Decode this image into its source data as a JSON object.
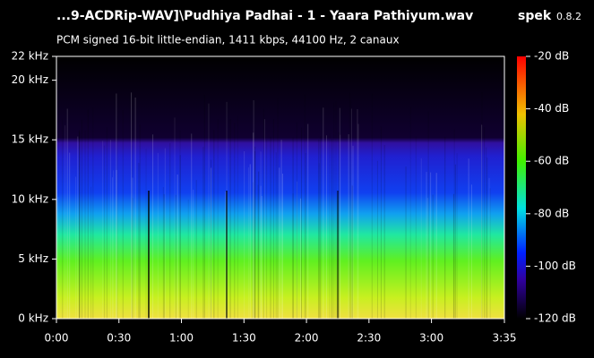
{
  "chart_data": {
    "type": "spectrogram",
    "title": "...9-ACDRip-WAV]\\Pudhiya Padhai - 1 - Yaara Pathiyum.wav",
    "app": "spek",
    "version": "0.8.2",
    "subtitle": "PCM signed 16-bit little-endian, 1411 kbps, 44100 Hz, 2 canaux",
    "xlim": [
      0,
      215
    ],
    "xticks": [
      {
        "value": 0,
        "label": "0:00"
      },
      {
        "value": 30,
        "label": "0:30"
      },
      {
        "value": 60,
        "label": "1:00"
      },
      {
        "value": 90,
        "label": "1:30"
      },
      {
        "value": 120,
        "label": "2:00"
      },
      {
        "value": 150,
        "label": "2:30"
      },
      {
        "value": 180,
        "label": "3:00"
      },
      {
        "value": 215,
        "label": "3:35"
      }
    ],
    "ylim": [
      0,
      22
    ],
    "yticks": [
      {
        "value": 0,
        "label": "0 kHz"
      },
      {
        "value": 5,
        "label": "5 kHz"
      },
      {
        "value": 10,
        "label": "10 kHz"
      },
      {
        "value": 15,
        "label": "15 kHz"
      },
      {
        "value": 20,
        "label": "20 kHz"
      },
      {
        "value": 22,
        "label": "22 kHz"
      }
    ],
    "clim": [
      -120,
      -20
    ],
    "cticks": [
      {
        "value": -20,
        "label": "-20 dB"
      },
      {
        "value": -40,
        "label": "-40 dB"
      },
      {
        "value": -60,
        "label": "-60 dB"
      },
      {
        "value": -80,
        "label": "-80 dB"
      },
      {
        "value": -100,
        "label": "-100 dB"
      },
      {
        "value": -120,
        "label": "-120 dB"
      }
    ]
  }
}
